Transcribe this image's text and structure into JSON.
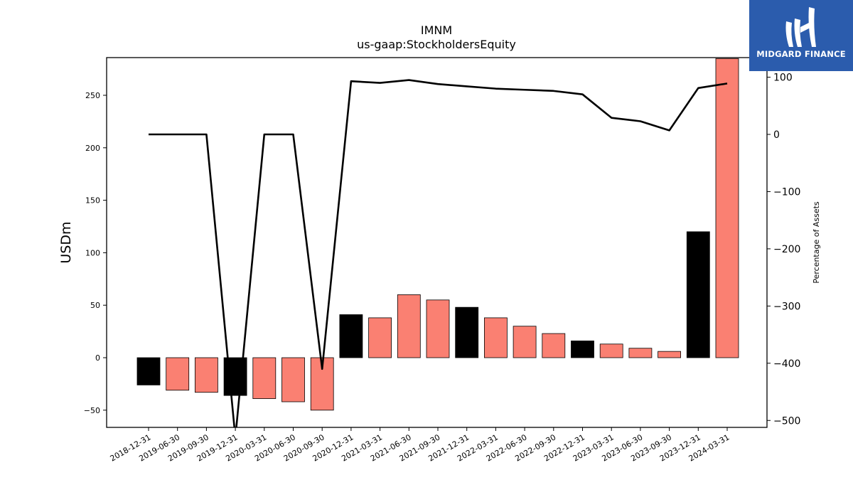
{
  "chart_data": {
    "type": "bar",
    "title": "IMNM",
    "subtitle": "us-gaap:StockholdersEquity",
    "ylabel": "USDm",
    "y2label": "Percentage of Assets",
    "ylim": [
      -67,
      285
    ],
    "y2lim": [
      -513,
      134
    ],
    "yticks": [
      -50,
      0,
      50,
      100,
      150,
      200,
      250
    ],
    "y2ticks": [
      -500,
      -400,
      -300,
      -200,
      -100,
      0,
      100
    ],
    "categories": [
      "2018-12-31",
      "2019-06-30",
      "2019-09-30",
      "2019-12-31",
      "2020-03-31",
      "2020-06-30",
      "2020-09-30",
      "2020-12-31",
      "2021-03-31",
      "2021-06-30",
      "2021-09-30",
      "2021-12-31",
      "2022-03-31",
      "2022-06-30",
      "2022-09-30",
      "2022-12-31",
      "2023-03-31",
      "2023-06-30",
      "2023-09-30",
      "2023-12-31",
      "2024-03-31"
    ],
    "series": [
      {
        "kind": "bar",
        "values": [
          -26,
          -31,
          -33,
          -36,
          -39,
          -42,
          -50,
          41,
          38,
          60,
          55,
          48,
          38,
          30,
          23,
          16,
          13,
          9,
          6,
          120,
          285
        ],
        "colors": [
          "#000000",
          "#fa8072",
          "#fa8072",
          "#000000",
          "#fa8072",
          "#fa8072",
          "#fa8072",
          "#000000",
          "#fa8072",
          "#fa8072",
          "#fa8072",
          "#000000",
          "#fa8072",
          "#fa8072",
          "#fa8072",
          "#000000",
          "#fa8072",
          "#fa8072",
          "#fa8072",
          "#000000",
          "#fa8072"
        ]
      },
      {
        "kind": "line",
        "axis": "right",
        "color": "#000000",
        "values": [
          0,
          0,
          0,
          -530,
          0,
          0,
          -410,
          93,
          90,
          95,
          88,
          84,
          80,
          78,
          76,
          70,
          29,
          23,
          7,
          81,
          89
        ]
      }
    ],
    "grid": false,
    "legend": "none"
  },
  "logo": {
    "text": "MIDGARD FINANCE",
    "icon": "midgard-logo-icon"
  }
}
